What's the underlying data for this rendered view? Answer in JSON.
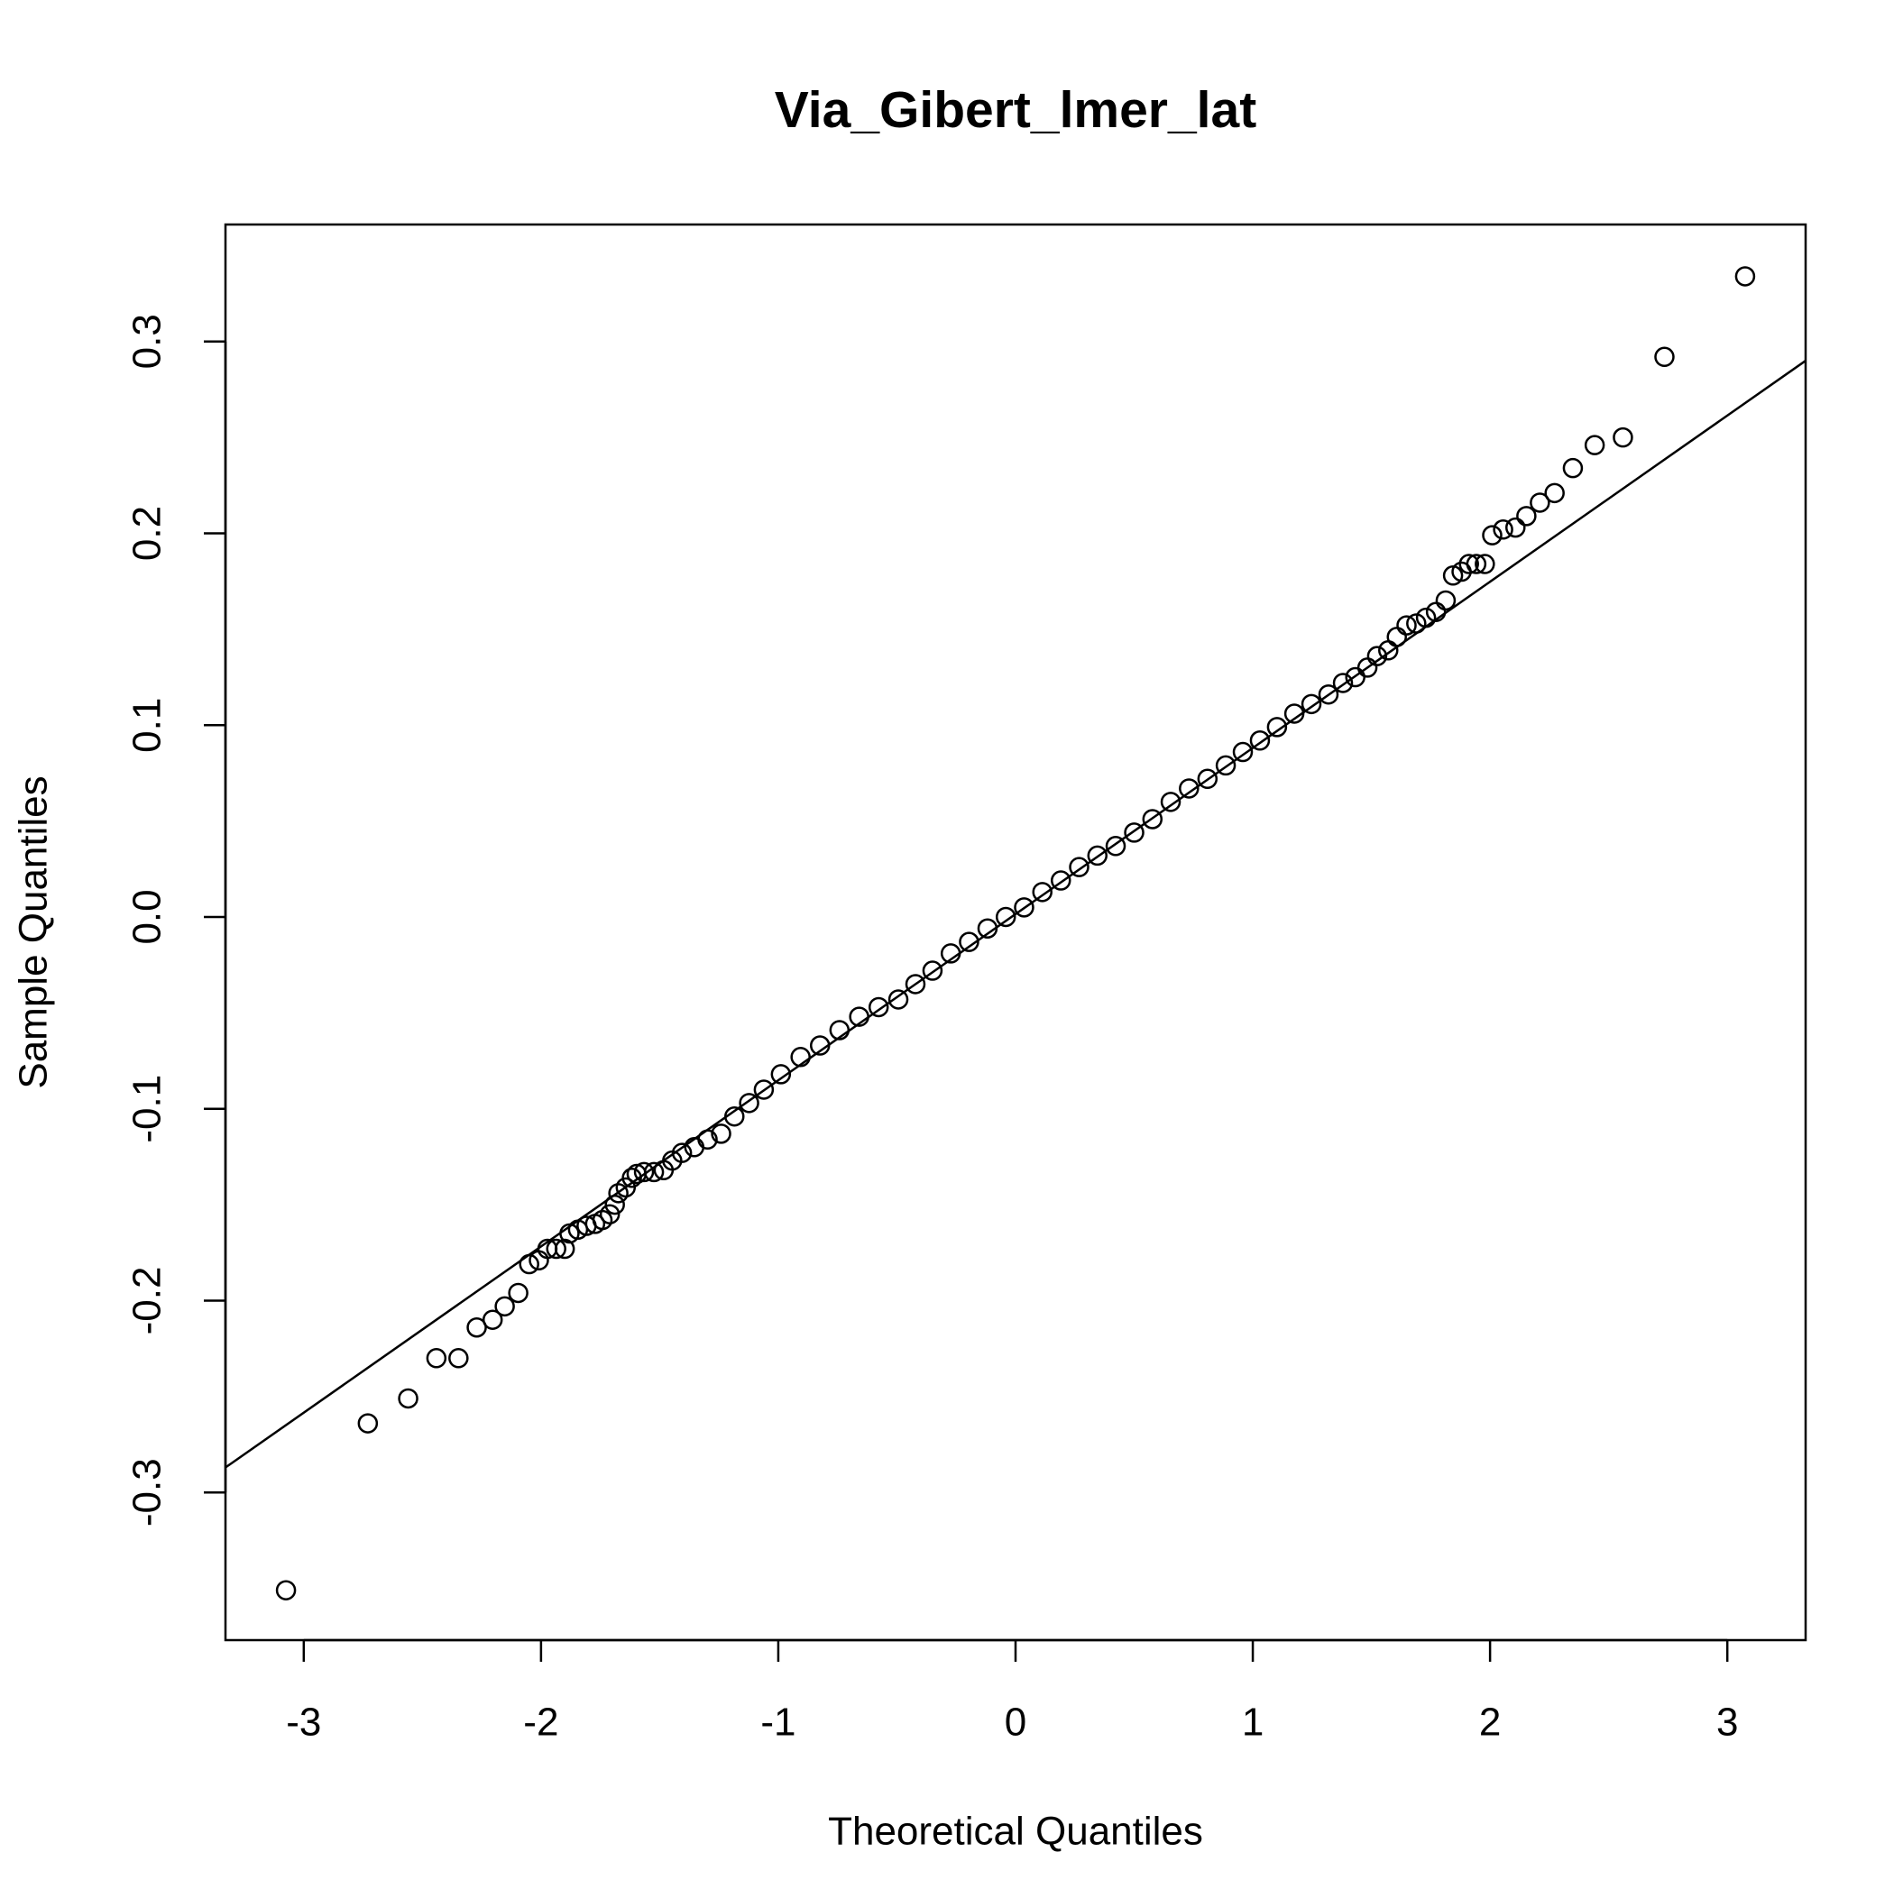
{
  "chart_data": {
    "type": "scatter",
    "title": "Via_Gibert_lmer_lat",
    "x_label": "Theoretical Quantiles",
    "y_label": "Sample Quantiles",
    "color": "#000000",
    "x": [
      -3.075,
      -2.73,
      -2.56,
      -2.441,
      -2.348,
      -2.271,
      -2.204,
      -2.153,
      -2.096,
      -2.05,
      -2.009,
      -1.973,
      -1.936,
      -1.9,
      -1.88,
      -1.844,
      -1.808,
      -1.772,
      -1.741,
      -1.71,
      -1.689,
      -1.674,
      -1.643,
      -1.617,
      -1.597,
      -1.566,
      -1.524,
      -1.483,
      -1.447,
      -1.406,
      -1.354,
      -1.298,
      -1.241,
      -1.185,
      -1.123,
      -1.061,
      -0.989,
      -0.906,
      -0.824,
      -0.742,
      -0.659,
      -0.577,
      -0.494,
      -0.422,
      -0.35,
      -0.273,
      -0.196,
      -0.118,
      -0.041,
      0.036,
      0.113,
      0.191,
      0.268,
      0.345,
      0.422,
      0.5,
      0.577,
      0.654,
      0.731,
      0.809,
      0.886,
      0.958,
      1.03,
      1.102,
      1.175,
      1.247,
      1.319,
      1.38,
      1.432,
      1.483,
      1.524,
      1.571,
      1.607,
      1.648,
      1.689,
      1.73,
      1.772,
      1.813,
      1.844,
      1.88,
      1.911,
      1.942,
      1.978,
      2.009,
      2.055,
      2.107,
      2.153,
      2.21,
      2.272,
      2.349,
      2.441,
      2.56,
      2.735,
      3.075
    ],
    "y": [
      -0.351,
      -0.264,
      -0.251,
      -0.23,
      -0.23,
      -0.214,
      -0.21,
      -0.203,
      -0.196,
      -0.181,
      -0.179,
      -0.173,
      -0.173,
      -0.173,
      -0.165,
      -0.163,
      -0.161,
      -0.16,
      -0.158,
      -0.155,
      -0.15,
      -0.144,
      -0.141,
      -0.136,
      -0.134,
      -0.133,
      -0.133,
      -0.132,
      -0.127,
      -0.123,
      -0.12,
      -0.116,
      -0.113,
      -0.104,
      -0.097,
      -0.09,
      -0.082,
      -0.073,
      -0.067,
      -0.059,
      -0.052,
      -0.047,
      -0.043,
      -0.035,
      -0.028,
      -0.019,
      -0.013,
      -0.006,
      0.0,
      0.005,
      0.013,
      0.019,
      0.026,
      0.032,
      0.037,
      0.044,
      0.051,
      0.06,
      0.067,
      0.072,
      0.079,
      0.086,
      0.092,
      0.099,
      0.106,
      0.111,
      0.116,
      0.122,
      0.125,
      0.13,
      0.136,
      0.139,
      0.146,
      0.152,
      0.153,
      0.156,
      0.159,
      0.165,
      0.178,
      0.18,
      0.184,
      0.184,
      0.184,
      0.199,
      0.202,
      0.203,
      0.209,
      0.216,
      0.221,
      0.234,
      0.246,
      0.25,
      0.292,
      0.334
    ],
    "reference_line": {
      "x": [
        -3.33,
        3.33
      ],
      "y": [
        -0.287,
        0.29
      ]
    },
    "xlim": [
      -3.33,
      3.33
    ],
    "ylim": [
      -0.377,
      0.361
    ],
    "xticks": [
      -3,
      -2,
      -1,
      0,
      1,
      2,
      3
    ],
    "yticks": [
      -0.3,
      -0.2,
      -0.1,
      {
        "value": 0,
        "label": "0.0"
      },
      0.1,
      0.2,
      0.3
    ]
  }
}
